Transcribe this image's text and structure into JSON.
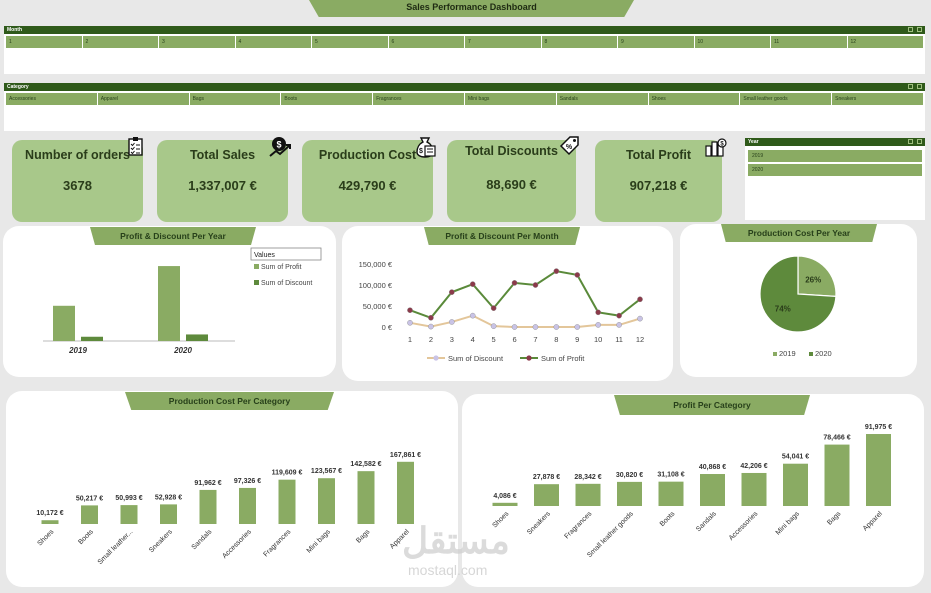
{
  "title": "Sales Performance Dashboard",
  "month_slicer": {
    "header": "Month",
    "items": [
      "1",
      "2",
      "3",
      "4",
      "5",
      "6",
      "7",
      "8",
      "9",
      "10",
      "11",
      "12"
    ]
  },
  "category_slicer": {
    "header": "Category",
    "items": [
      "Accessories",
      "Apparel",
      "Bags",
      "Boots",
      "Fragrances",
      "Mini bags",
      "Sandals",
      "Shoes",
      "Small leather goods",
      "Sneakers"
    ]
  },
  "year_slicer": {
    "header": "Year",
    "items": [
      "2019",
      "2020"
    ]
  },
  "kpis": [
    {
      "label": "Number of orders",
      "value": "3678",
      "icon": "clipboard-icon"
    },
    {
      "label": "Total Sales",
      "value": "1,337,007 €",
      "icon": "money-growth-icon"
    },
    {
      "label": "Production Cost",
      "value": "429,790 €",
      "icon": "money-bag-icon"
    },
    {
      "label": "Total Discounts",
      "value": "88,690 €",
      "icon": "discount-tag-icon"
    },
    {
      "label": "Total Profit",
      "value": "907,218 €",
      "icon": "coins-icon"
    }
  ],
  "colors": {
    "accent": "#8aab63",
    "dark_green": "#2f5a1a",
    "kpi_bg": "#a8c88a",
    "bar": "#8aab63",
    "pie_dark": "#5e8a3c",
    "profit_line": "#5a8a3a",
    "profit_marker": "#8b3a4a",
    "discount_line": "#e3c69a",
    "discount_marker": "#c9c3e6"
  },
  "chart_data": [
    {
      "type": "bar",
      "title": "Profit & Discount Per Year",
      "categories": [
        "2019",
        "2020"
      ],
      "legend_header": "Values",
      "series": [
        {
          "name": "Sum of Profit",
          "values": [
            290000,
            617000
          ]
        },
        {
          "name": "Sum of Discount",
          "values": [
            35000,
            54000
          ]
        }
      ],
      "ylim": [
        0,
        700000
      ]
    },
    {
      "type": "line",
      "title": "Profit & Discount Per Month",
      "x": [
        1,
        2,
        3,
        4,
        5,
        6,
        7,
        8,
        9,
        10,
        11,
        12
      ],
      "ytick_labels": [
        "150,000 €",
        "100,000 €",
        "50,000 €",
        "0 €"
      ],
      "ylim": [
        0,
        150000
      ],
      "series": [
        {
          "name": "Sum of Discount",
          "values": [
            10000,
            1000,
            12000,
            27000,
            2000,
            0,
            0,
            0,
            0,
            5000,
            5000,
            20000
          ]
        },
        {
          "name": "Sum of Profit",
          "values": [
            40000,
            22000,
            83000,
            102000,
            45000,
            105000,
            100000,
            133000,
            124000,
            35000,
            27000,
            66000
          ]
        }
      ]
    },
    {
      "type": "pie",
      "title": "Production Cost Per Year",
      "labels": [
        "2019",
        "2020"
      ],
      "values": [
        26,
        74
      ],
      "value_labels": [
        "26%",
        "74%"
      ]
    },
    {
      "type": "bar",
      "title": "Production Cost Per Category",
      "categories": [
        "Shoes",
        "Boots",
        "Small leather...",
        "Sneakers",
        "Sandals",
        "Accessories",
        "Fragrances",
        "Mini bags",
        "Bags",
        "Apparel"
      ],
      "values": [
        10172,
        50217,
        50993,
        52928,
        91962,
        97326,
        119609,
        123567,
        142582,
        167861
      ],
      "value_labels": [
        "10,172 €",
        "50,217 €",
        "50,993 €",
        "52,928 €",
        "91,962 €",
        "97,326 €",
        "119,609 €",
        "123,567 €",
        "142,582 €",
        "167,861 €"
      ],
      "ylim": [
        0,
        170000
      ]
    },
    {
      "type": "bar",
      "title": "Profit Per Category",
      "categories": [
        "Shoes",
        "Sneakers",
        "Fragrances",
        "Small leather goods",
        "Boots",
        "Sandals",
        "Accessories",
        "Mini bags",
        "Bags",
        "Apparel"
      ],
      "values": [
        4086,
        27878,
        28342,
        30820,
        31108,
        40868,
        42206,
        54041,
        78466,
        91975
      ],
      "value_labels": [
        "4,086 €",
        "27,878 €",
        "28,342 €",
        "30,820 €",
        "31,108 €",
        "40,868 €",
        "42,206 €",
        "54,041 €",
        "78,466 €",
        "91,975 €"
      ],
      "ylim": [
        0,
        92000
      ]
    }
  ],
  "watermark": {
    "arabic": "مستقل",
    "latin": "mostaql.com"
  }
}
